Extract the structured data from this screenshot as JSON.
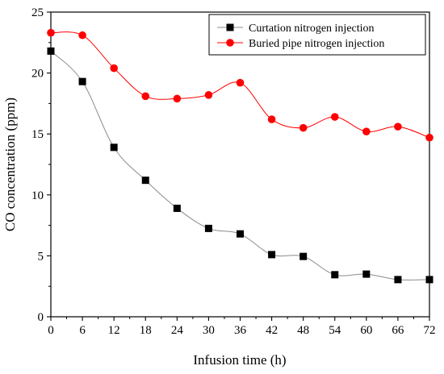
{
  "chart_data": {
    "type": "line",
    "title": "",
    "xlabel": "Infusion time (h)",
    "ylabel": "CO concentration (ppm)",
    "xlim": [
      0,
      72
    ],
    "ylim": [
      0,
      25
    ],
    "x_ticks": [
      0,
      6,
      12,
      18,
      24,
      30,
      36,
      42,
      48,
      54,
      60,
      66,
      72
    ],
    "y_ticks": [
      0,
      5,
      10,
      15,
      20,
      25
    ],
    "grid": false,
    "legend_position": "top-right",
    "series": [
      {
        "name": "Curtation nitrogen injection",
        "color": "#000000",
        "line_color": "#8c8c8c",
        "marker": "square",
        "x": [
          0,
          6,
          12,
          18,
          24,
          30,
          36,
          42,
          48,
          54,
          60,
          66,
          72
        ],
        "y": [
          21.8,
          19.3,
          13.9,
          11.2,
          8.9,
          7.25,
          6.8,
          5.1,
          4.95,
          3.45,
          3.5,
          3.05,
          3.05
        ]
      },
      {
        "name": "Buried pipe nitrogen injection",
        "color": "#ff0000",
        "line_color": "#ff0000",
        "marker": "circle",
        "x": [
          0,
          6,
          12,
          18,
          24,
          30,
          36,
          42,
          48,
          54,
          60,
          66,
          72
        ],
        "y": [
          23.3,
          23.1,
          20.4,
          18.1,
          17.9,
          18.2,
          19.2,
          16.2,
          15.5,
          16.4,
          15.2,
          15.6,
          14.7
        ]
      }
    ]
  }
}
